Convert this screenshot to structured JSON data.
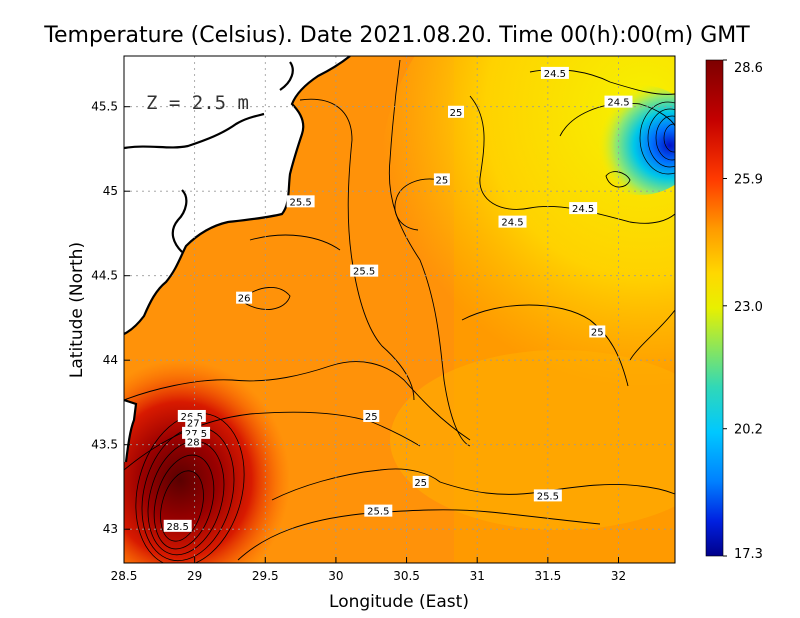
{
  "chart_data": {
    "type": "heatmap",
    "title": "Temperature (Celsius). Date 2021.08.20. Time 00(h):00(m)  GMT",
    "xlabel": "Longitude (East)",
    "ylabel": "Latitude (North)",
    "xlim": [
      28.5,
      32.4
    ],
    "ylim": [
      42.8,
      45.8
    ],
    "x_ticks": [
      "28.5",
      "29",
      "29.5",
      "30",
      "30.5",
      "31",
      "31.5",
      "32"
    ],
    "x_tick_values": [
      28.5,
      29,
      29.5,
      30,
      30.5,
      31,
      31.5,
      32
    ],
    "y_ticks": [
      "43",
      "43.5",
      "44",
      "44.5",
      "45",
      "45.5"
    ],
    "y_tick_values": [
      43,
      43.5,
      44,
      44.5,
      45,
      45.5
    ],
    "grid": true,
    "annotation": "Z = 2.5 m",
    "colorbar": {
      "min": 17.3,
      "max": 28.6,
      "tick_labels": [
        "28.6",
        "25.9",
        "23.0",
        "20.2",
        "17.3"
      ],
      "tick_values": [
        28.6,
        25.9,
        23.0,
        20.2,
        17.3
      ]
    },
    "contour_labels": [
      {
        "text": "24.5",
        "lon": 31.55,
        "lat": 45.7
      },
      {
        "text": "24.5",
        "lon": 32.0,
        "lat": 45.53
      },
      {
        "text": "25",
        "lon": 30.85,
        "lat": 45.47
      },
      {
        "text": "25",
        "lon": 30.75,
        "lat": 45.07
      },
      {
        "text": "24.5",
        "lon": 31.25,
        "lat": 44.82
      },
      {
        "text": "24.5",
        "lon": 31.75,
        "lat": 44.9
      },
      {
        "text": "25.5",
        "lon": 29.75,
        "lat": 44.94
      },
      {
        "text": "25.5",
        "lon": 30.2,
        "lat": 44.53
      },
      {
        "text": "26",
        "lon": 29.35,
        "lat": 44.37
      },
      {
        "text": "25",
        "lon": 31.85,
        "lat": 44.17
      },
      {
        "text": "25",
        "lon": 30.25,
        "lat": 43.67
      },
      {
        "text": "26.5",
        "lon": 28.98,
        "lat": 43.67
      },
      {
        "text": "27",
        "lon": 28.99,
        "lat": 43.63
      },
      {
        "text": "27.5",
        "lon": 29.01,
        "lat": 43.57
      },
      {
        "text": "28",
        "lon": 28.99,
        "lat": 43.52
      },
      {
        "text": "25",
        "lon": 30.6,
        "lat": 43.28
      },
      {
        "text": "25.5",
        "lon": 31.5,
        "lat": 43.2
      },
      {
        "text": "25.5",
        "lon": 30.3,
        "lat": 43.11
      },
      {
        "text": "28.5",
        "lon": 28.88,
        "lat": 43.02
      }
    ]
  },
  "colors": {
    "land": "#ffffff",
    "coastline": "#000000",
    "grid": "#9a9a9a",
    "contour": "#000000"
  }
}
